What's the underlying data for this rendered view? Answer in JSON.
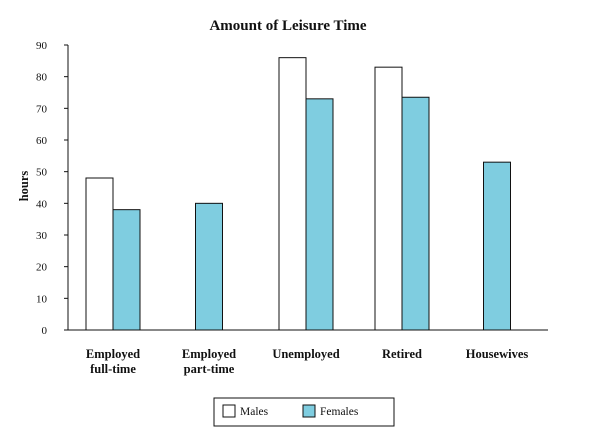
{
  "chart_data": {
    "type": "bar",
    "title": "Amount of Leisure Time",
    "xlabel": "",
    "ylabel": "hours",
    "ylim": [
      0,
      90
    ],
    "yticks": [
      0,
      10,
      20,
      30,
      40,
      50,
      60,
      70,
      80,
      90
    ],
    "grid": false,
    "legend_position": "bottom",
    "categories": [
      [
        "Employed",
        "full-time"
      ],
      [
        "Employed",
        "part-time"
      ],
      [
        "Unemployed"
      ],
      [
        "Retired"
      ],
      [
        "Housewives"
      ]
    ],
    "series": [
      {
        "name": "Males",
        "color": "#ffffff",
        "values": [
          48,
          null,
          86,
          83,
          null
        ]
      },
      {
        "name": "Females",
        "color": "#7fcde0",
        "values": [
          38,
          40,
          73,
          73.5,
          53
        ]
      }
    ]
  }
}
